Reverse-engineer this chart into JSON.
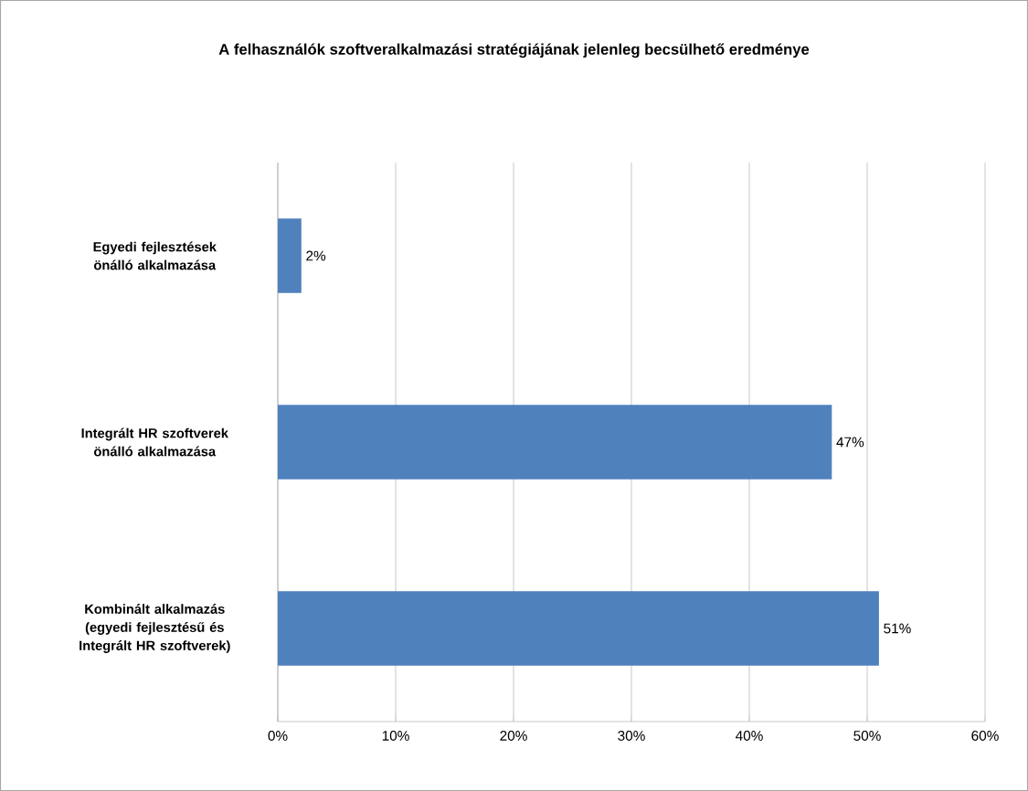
{
  "chart_data": {
    "type": "bar",
    "orientation": "horizontal",
    "title": "A felhasználók szoftveralkalmazási stratégiájának jelenleg becsülhető eredménye",
    "categories": [
      "Egyedi fejlesztések önálló alkalmazása",
      "Integrált HR szoftverek önálló alkalmazása",
      "Kombinált alkalmazás (egyedi fejlesztésű és Integrált HR szoftverek)"
    ],
    "values": [
      2,
      47,
      51
    ],
    "value_labels": [
      "2%",
      "47%",
      "51%"
    ],
    "color": "#4f81bd",
    "xlim": [
      0,
      60
    ],
    "xticks": [
      {
        "value": 0,
        "label": "0%"
      },
      {
        "value": 10,
        "label": "10%"
      },
      {
        "value": 20,
        "label": "20%"
      },
      {
        "value": 30,
        "label": "30%"
      },
      {
        "value": 40,
        "label": "40%"
      },
      {
        "value": 50,
        "label": "50%"
      },
      {
        "value": 60,
        "label": "60%"
      }
    ],
    "grid": "x"
  }
}
